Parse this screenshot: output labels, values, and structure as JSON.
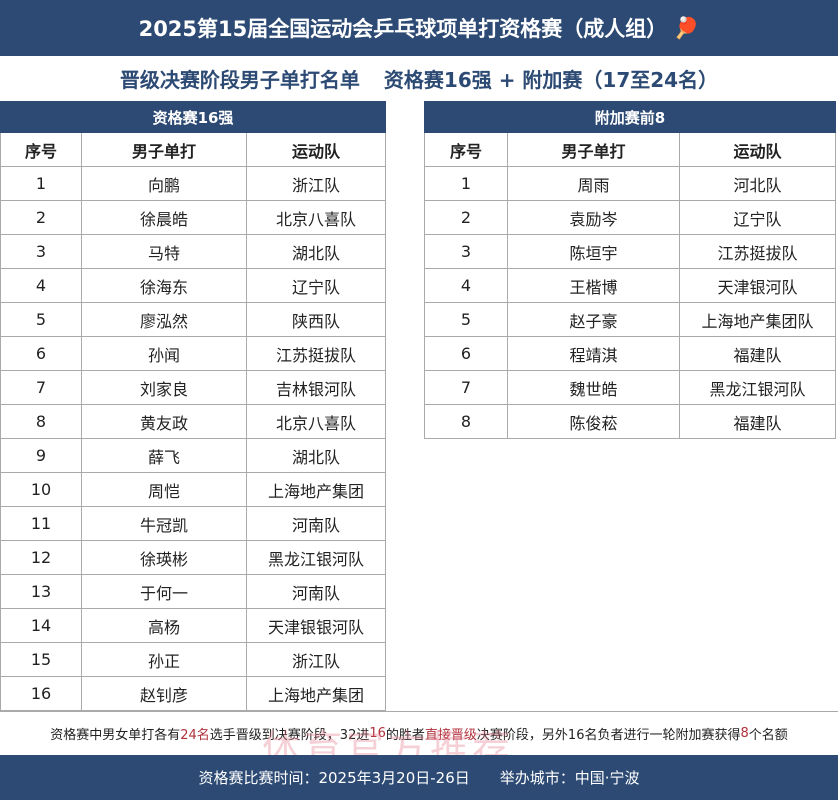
{
  "header": {
    "title": "2025第15届全国运动会乒乓球项单打资格赛（成人组）",
    "icon": "ping-pong-paddle-icon"
  },
  "subtitle": {
    "left": "晋级决赛阶段男子单打名单",
    "right": "资格赛16强 + 附加赛（17至24名）"
  },
  "columns": [
    "序号",
    "男子单打",
    "运动队"
  ],
  "left_table": {
    "title": "资格赛16强",
    "rows": [
      [
        "1",
        "向鹏",
        "浙江队"
      ],
      [
        "2",
        "徐晨皓",
        "北京八喜队"
      ],
      [
        "3",
        "马特",
        "湖北队"
      ],
      [
        "4",
        "徐海东",
        "辽宁队"
      ],
      [
        "5",
        "廖泓然",
        "陕西队"
      ],
      [
        "6",
        "孙闻",
        "江苏挺拔队"
      ],
      [
        "7",
        "刘家良",
        "吉林银河队"
      ],
      [
        "8",
        "黄友政",
        "北京八喜队"
      ],
      [
        "9",
        "薛飞",
        "湖北队"
      ],
      [
        "10",
        "周恺",
        "上海地产集团"
      ],
      [
        "11",
        "牛冠凯",
        "河南队"
      ],
      [
        "12",
        "徐瑛彬",
        "黑龙江银河队"
      ],
      [
        "13",
        "于何一",
        "河南队"
      ],
      [
        "14",
        "高杨",
        "天津银银河队"
      ],
      [
        "15",
        "孙正",
        "浙江队"
      ],
      [
        "16",
        "赵钊彦",
        "上海地产集团"
      ]
    ]
  },
  "right_table": {
    "title": "附加赛前8",
    "rows": [
      [
        "1",
        "周雨",
        "河北队"
      ],
      [
        "2",
        "袁励岑",
        "辽宁队"
      ],
      [
        "3",
        "陈垣宇",
        "江苏挺拔队"
      ],
      [
        "4",
        "王楷博",
        "天津银河队"
      ],
      [
        "5",
        "赵子豪",
        "上海地产集团队"
      ],
      [
        "6",
        "程靖淇",
        "福建队"
      ],
      [
        "7",
        "魏世皓",
        "黑龙江银河队"
      ],
      [
        "8",
        "陈俊菘",
        "福建队"
      ]
    ]
  },
  "note": {
    "parts": [
      "资格赛中男女单打各有",
      "24名",
      "选手晋级到决赛阶段，32进",
      "16",
      "的胜者",
      "直接晋级",
      "决赛阶段，另外16名负者进行一轮附加赛获得",
      "8",
      "个名额"
    ]
  },
  "footer": {
    "time": "资格赛比赛时间：2025年3月20日-26日",
    "city": "举办城市：中国·宁波"
  },
  "watermark": "体育官方推荐",
  "colors": {
    "primary": "#2c4a73",
    "highlight": "#b0303a"
  }
}
